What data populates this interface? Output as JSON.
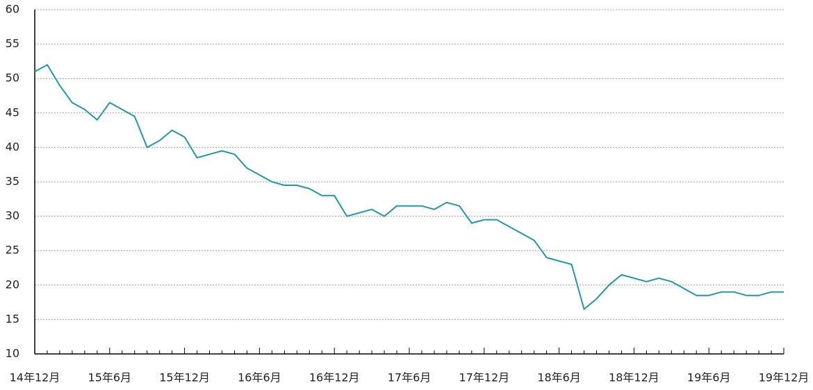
{
  "chart_data": {
    "type": "line",
    "categories": [
      "14年12月",
      null,
      null,
      null,
      null,
      null,
      "15年6月",
      null,
      null,
      null,
      null,
      null,
      "15年12月",
      null,
      null,
      null,
      null,
      null,
      "16年6月",
      null,
      null,
      null,
      null,
      null,
      "16年12月",
      null,
      null,
      null,
      null,
      null,
      "17年6月",
      null,
      null,
      null,
      null,
      null,
      "17年12月",
      null,
      null,
      null,
      null,
      null,
      "18年6月",
      null,
      null,
      null,
      null,
      null,
      "18年12月",
      null,
      null,
      null,
      null,
      null,
      "19年6月",
      null,
      null,
      null,
      null,
      null,
      "19年12月"
    ],
    "values": [
      51,
      52,
      49,
      46.5,
      45.5,
      44,
      46.5,
      45.5,
      44.5,
      40,
      41,
      42.5,
      41.5,
      38.5,
      39,
      39.5,
      39,
      37,
      36,
      35,
      34.5,
      34.5,
      34,
      33,
      33,
      30,
      30.5,
      31,
      30,
      31.5,
      31.5,
      31.5,
      31,
      32,
      31.5,
      29,
      29.5,
      29.5,
      28.5,
      27.5,
      26.5,
      24,
      23.5,
      23,
      16.5,
      18,
      20,
      21.5,
      21,
      20.5,
      21,
      20.5,
      19.5,
      18.5,
      18.5,
      19,
      19,
      18.5,
      18.5,
      19,
      19
    ],
    "color": "#1f97a8",
    "ylim": [
      10,
      60
    ],
    "yticks": [
      10,
      15,
      20,
      25,
      30,
      35,
      40,
      45,
      50,
      55,
      60
    ],
    "grid": true
  }
}
